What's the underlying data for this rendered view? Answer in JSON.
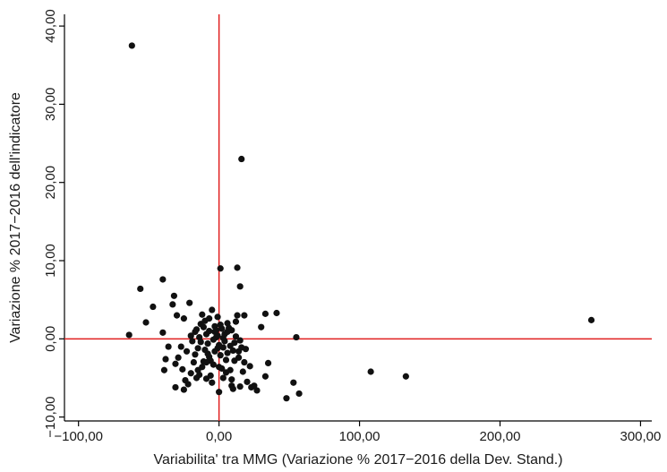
{
  "chart_data": {
    "type": "scatter",
    "title": "",
    "xlabel": "Variabilita' tra MMG (Variazione % 2017−2016 della Dev. Stand.)",
    "ylabel": "Variazione % 2017−2016 dell'indicatore",
    "xlim": [
      -110,
      308
    ],
    "ylim": [
      -10.5,
      41.5
    ],
    "xticks": [
      {
        "value": -100,
        "label": "−100,00"
      },
      {
        "value": 0,
        "label": "0,00"
      },
      {
        "value": 100,
        "label": "100,00"
      },
      {
        "value": 200,
        "label": "200,00"
      },
      {
        "value": 300,
        "label": "300,00"
      }
    ],
    "yticks": [
      {
        "value": -10,
        "label": "−10,00"
      },
      {
        "value": 0,
        "label": "0,00"
      },
      {
        "value": 10,
        "label": "10,00"
      },
      {
        "value": 20,
        "label": "20,00"
      },
      {
        "value": 30,
        "label": "30,00"
      },
      {
        "value": 40,
        "label": "40,00"
      }
    ],
    "reference_lines": {
      "x": 0,
      "y": 0,
      "color": "#e02020"
    },
    "grid": false,
    "marker_color": "#111111",
    "points": [
      [
        -62,
        37.5
      ],
      [
        16,
        23.0
      ],
      [
        1,
        9.0
      ],
      [
        13,
        9.1
      ],
      [
        -40,
        7.6
      ],
      [
        -56,
        6.4
      ],
      [
        15,
        6.7
      ],
      [
        -64,
        0.5
      ],
      [
        -52,
        2.1
      ],
      [
        -47,
        4.1
      ],
      [
        -40,
        0.8
      ],
      [
        -32,
        5.5
      ],
      [
        -30,
        3.0
      ],
      [
        -25,
        2.6
      ],
      [
        -21,
        4.6
      ],
      [
        -17,
        0.9
      ],
      [
        -13,
        1.9
      ],
      [
        -10,
        2.3
      ],
      [
        -5,
        3.7
      ],
      [
        -3,
        1.6
      ],
      [
        -1,
        0.4
      ],
      [
        2,
        1.3
      ],
      [
        6,
        2.0
      ],
      [
        9,
        1.1
      ],
      [
        13,
        3.0
      ],
      [
        33,
        3.2
      ],
      [
        41,
        3.3
      ],
      [
        55,
        0.2
      ],
      [
        265,
        2.4
      ],
      [
        -38,
        -2.6
      ],
      [
        -39,
        -4.0
      ],
      [
        -31,
        -3.2
      ],
      [
        -31,
        -6.2
      ],
      [
        -23,
        -1.6
      ],
      [
        -20,
        -4.4
      ],
      [
        -17,
        -2.0
      ],
      [
        -14,
        -4.6
      ],
      [
        -12,
        -3.6
      ],
      [
        -9,
        -5.1
      ],
      [
        -7,
        -2.3
      ],
      [
        -4,
        -3.3
      ],
      [
        0,
        -6.8
      ],
      [
        3,
        -1.1
      ],
      [
        5,
        -4.3
      ],
      [
        9,
        -5.2
      ],
      [
        11,
        -2.8
      ],
      [
        15,
        -6.1
      ],
      [
        19,
        -1.3
      ],
      [
        23,
        -6.2
      ],
      [
        27,
        -6.6
      ],
      [
        33,
        -4.8
      ],
      [
        35,
        -3.1
      ],
      [
        48,
        -7.6
      ],
      [
        53,
        -5.6
      ],
      [
        57,
        -7.0
      ],
      [
        108,
        -4.2
      ],
      [
        133,
        -4.8
      ],
      [
        -27,
        -1.0
      ],
      [
        -22,
        -5.8
      ],
      [
        -18,
        -3.0
      ],
      [
        -15,
        -1.2
      ],
      [
        -11,
        -2.9
      ],
      [
        -8,
        -0.6
      ],
      [
        -6,
        -4.7
      ],
      [
        -2,
        0.2
      ],
      [
        -1,
        -1.2
      ],
      [
        1,
        1.8
      ],
      [
        4,
        -0.3
      ],
      [
        6,
        -1.8
      ],
      [
        8,
        -0.9
      ],
      [
        11,
        -0.5
      ],
      [
        14,
        -1.6
      ],
      [
        17,
        -4.2
      ],
      [
        20,
        -5.5
      ],
      [
        25,
        -6.0
      ],
      [
        -19,
        -0.3
      ],
      [
        -16,
        1.2
      ],
      [
        -13,
        -0.4
      ],
      [
        -9,
        0.6
      ],
      [
        -8,
        -1.9
      ],
      [
        -4,
        -0.1
      ],
      [
        -3,
        0.9
      ],
      [
        0,
        -0.8
      ],
      [
        3,
        0.1
      ],
      [
        5,
        -2.7
      ],
      [
        7,
        1.4
      ],
      [
        10,
        -1.5
      ],
      [
        12,
        0.3
      ],
      [
        16,
        -1.1
      ],
      [
        -33,
        4.4
      ],
      [
        -36,
        -1.0
      ],
      [
        -29,
        -2.4
      ],
      [
        -26,
        -3.9
      ],
      [
        -24,
        -5.3
      ],
      [
        -12,
        3.1
      ],
      [
        -7,
        1.0
      ],
      [
        -5,
        -5.6
      ],
      [
        2,
        -3.8
      ],
      [
        8,
        -4.0
      ],
      [
        14,
        -2.4
      ],
      [
        18,
        -3.0
      ],
      [
        30,
        1.5
      ],
      [
        -15,
        -4.0
      ],
      [
        -10,
        -1.4
      ],
      [
        -6,
        -2.8
      ],
      [
        -2,
        1.1
      ],
      [
        0,
        -3.6
      ],
      [
        4,
        0.6
      ],
      [
        9,
        -6.0
      ],
      [
        12,
        2.2
      ],
      [
        22,
        -3.5
      ],
      [
        -11,
        1.5
      ],
      [
        -9,
        -3.0
      ],
      [
        -3,
        -1.6
      ],
      [
        1,
        -2.1
      ],
      [
        6,
        0.9
      ],
      [
        -20,
        0.4
      ],
      [
        -14,
        0.2
      ],
      [
        -7,
        2.6
      ],
      [
        3,
        -5.0
      ],
      [
        15,
        -0.2
      ],
      [
        18,
        3.0
      ],
      [
        -25,
        -6.5
      ],
      [
        -16,
        -5.0
      ],
      [
        -1,
        2.8
      ],
      [
        10,
        -6.4
      ]
    ]
  }
}
